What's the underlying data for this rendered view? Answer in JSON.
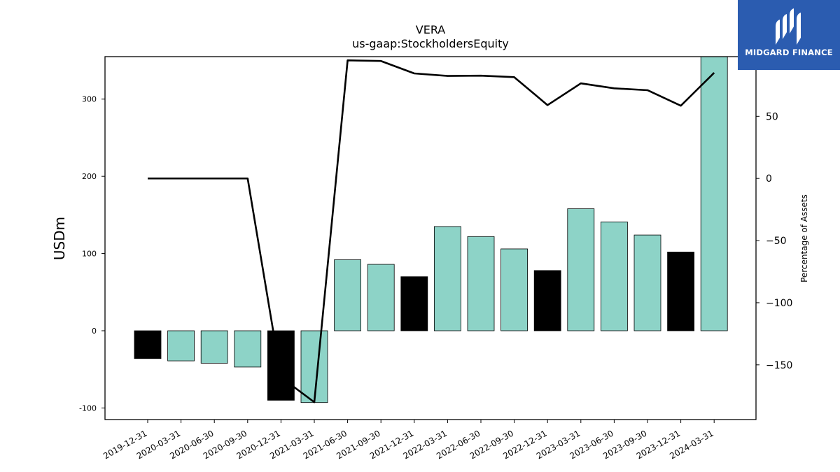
{
  "chart_data": {
    "type": "bar",
    "title": "VERA",
    "subtitle": "us-gaap:StockholdersEquity",
    "ylabel": "USDm",
    "y2label": "Percentage of Assets",
    "ylim": [
      -115,
      355
    ],
    "y2lim": [
      -194,
      98
    ],
    "yticks": [
      -100,
      0,
      100,
      200,
      300
    ],
    "y2ticks": [
      -150,
      -100,
      -50,
      0,
      50
    ],
    "y2tick_labels": [
      "−150",
      "−100",
      "−50",
      "0",
      "50"
    ],
    "categories": [
      "2019-12-31",
      "2020-03-31",
      "2020-06-30",
      "2020-09-30",
      "2020-12-31",
      "2021-03-31",
      "2021-06-30",
      "2021-09-30",
      "2021-12-31",
      "2022-03-31",
      "2022-06-30",
      "2022-09-30",
      "2022-12-31",
      "2023-03-31",
      "2023-06-30",
      "2023-09-30",
      "2023-12-31",
      "2024-03-31"
    ],
    "values": [
      -36,
      -39,
      -42,
      -47,
      -90,
      -93,
      92,
      86,
      70,
      135,
      122,
      106,
      78,
      158,
      141,
      124,
      102,
      360
    ],
    "bar_colors": [
      "#000000",
      "#8dd3c7",
      "#8dd3c7",
      "#8dd3c7",
      "#000000",
      "#8dd3c7",
      "#8dd3c7",
      "#8dd3c7",
      "#000000",
      "#8dd3c7",
      "#8dd3c7",
      "#8dd3c7",
      "#000000",
      "#8dd3c7",
      "#8dd3c7",
      "#8dd3c7",
      "#000000",
      "#8dd3c7"
    ],
    "line_series": {
      "axis": "right",
      "values": [
        0,
        0,
        0,
        0,
        -160,
        -180,
        95,
        94.5,
        84.5,
        82.5,
        82.7,
        81.5,
        59,
        76.5,
        72.5,
        71,
        58.5,
        85
      ]
    },
    "grid": false,
    "legend": "none"
  },
  "watermark": {
    "text": "MIDGARD FINANCE",
    "color": "#2b5cb0"
  }
}
